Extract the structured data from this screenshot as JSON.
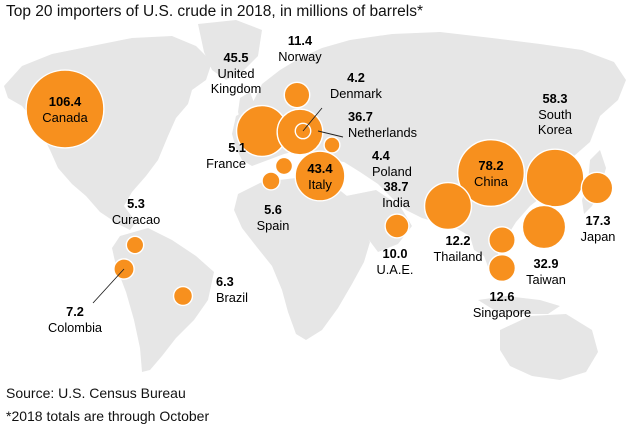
{
  "title": "Top 20 importers of U.S. crude in 2018, in millions of barrels*",
  "source": "Source: U.S. Census Bureau",
  "note": "*2018 totals are through October",
  "colors": {
    "bubble": "#f7901e",
    "land": "#e6e6e6",
    "ocean": "#ffffff"
  },
  "map_data": {
    "type": "proportional-symbol-map",
    "unit": "millions of barrels",
    "countries": [
      {
        "id": "canada",
        "name": "Canada",
        "value": 106.4,
        "value_label": "106.4"
      },
      {
        "id": "uk",
        "name": "United Kingdom",
        "name_lines": [
          "United",
          "Kingdom"
        ],
        "value": 45.5,
        "value_label": "45.5"
      },
      {
        "id": "norway",
        "name": "Norway",
        "value": 11.4,
        "value_label": "11.4"
      },
      {
        "id": "denmark",
        "name": "Denmark",
        "value": 4.2,
        "value_label": "4.2"
      },
      {
        "id": "netherlands",
        "name": "Netherlands",
        "value": 36.7,
        "value_label": "36.7"
      },
      {
        "id": "france",
        "name": "France",
        "value": 5.1,
        "value_label": "5.1"
      },
      {
        "id": "poland",
        "name": "Poland",
        "value": 4.4,
        "value_label": "4.4"
      },
      {
        "id": "italy",
        "name": "Italy",
        "value": 43.4,
        "value_label": "43.4"
      },
      {
        "id": "spain",
        "name": "Spain",
        "value": 5.6,
        "value_label": "5.6"
      },
      {
        "id": "india",
        "name": "India",
        "value": 38.7,
        "value_label": "38.7"
      },
      {
        "id": "china",
        "name": "China",
        "value": 78.2,
        "value_label": "78.2"
      },
      {
        "id": "south_korea",
        "name": "South Korea",
        "name_lines": [
          "South",
          "Korea"
        ],
        "value": 58.3,
        "value_label": "58.3"
      },
      {
        "id": "japan",
        "name": "Japan",
        "value": 17.3,
        "value_label": "17.3"
      },
      {
        "id": "thailand",
        "name": "Thailand",
        "value": 12.2,
        "value_label": "12.2"
      },
      {
        "id": "taiwan",
        "name": "Taiwan",
        "value": 32.9,
        "value_label": "32.9"
      },
      {
        "id": "singapore",
        "name": "Singapore",
        "value": 12.6,
        "value_label": "12.6"
      },
      {
        "id": "uae",
        "name": "U.A.E.",
        "value": 10.0,
        "value_label": "10.0"
      },
      {
        "id": "curacao",
        "name": "Curacao",
        "value": 5.3,
        "value_label": "5.3"
      },
      {
        "id": "colombia",
        "name": "Colombia",
        "value": 7.2,
        "value_label": "7.2"
      },
      {
        "id": "brazil",
        "name": "Brazil",
        "value": 6.3,
        "value_label": "6.3"
      }
    ]
  }
}
